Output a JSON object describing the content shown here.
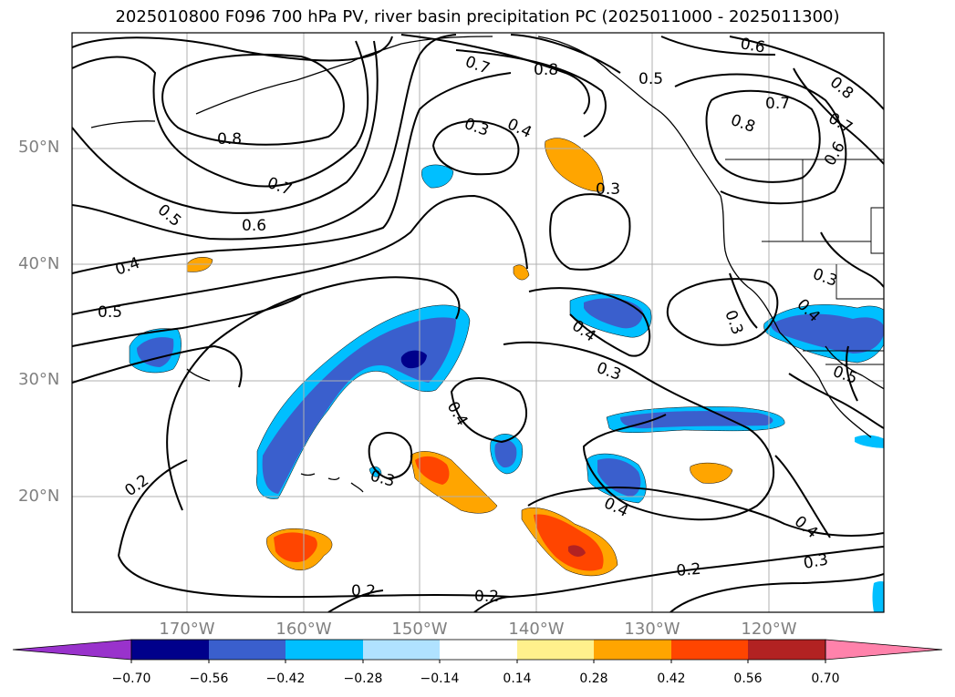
{
  "title": "2025010800 F096 700 hPa PV, river basin precipitation PC (2025011000 - 2025011300)",
  "axes": {
    "latitude_labels": [
      "50°N",
      "40°N",
      "30°N",
      "20°N"
    ],
    "longitude_labels": [
      "170°W",
      "160°W",
      "150°W",
      "140°W",
      "130°W",
      "120°W"
    ],
    "label_color": "#808080",
    "grid": true
  },
  "contour_labels": [
    "0.8",
    "0.7",
    "0.6",
    "0.5",
    "0.4",
    "0.5",
    "0.7",
    "0.8",
    "0.5",
    "0.3",
    "0.4",
    "0.3",
    "0.6",
    "0.8",
    "0.7",
    "0.8",
    "0.7",
    "0.6",
    "0.3",
    "0.4",
    "0.3",
    "0.3",
    "0.4",
    "0.5",
    "0.4",
    "0.3",
    "0.4",
    "0.2",
    "0.4",
    "0.3",
    "0.2",
    "0.2",
    "0.2"
  ],
  "colorbar": {
    "ticks": [
      "−0.70",
      "−0.56",
      "−0.42",
      "−0.28",
      "−0.14",
      "0.14",
      "0.28",
      "0.42",
      "0.56",
      "0.70"
    ],
    "colors": [
      "#9932cc",
      "#00008b",
      "#3a5fcd",
      "#00bfff",
      "#b0e2ff",
      "#ffffff",
      "#fff08c",
      "#ffa500",
      "#ff4500",
      "#b22222",
      "#ff82ab"
    ],
    "extend": "both"
  }
}
